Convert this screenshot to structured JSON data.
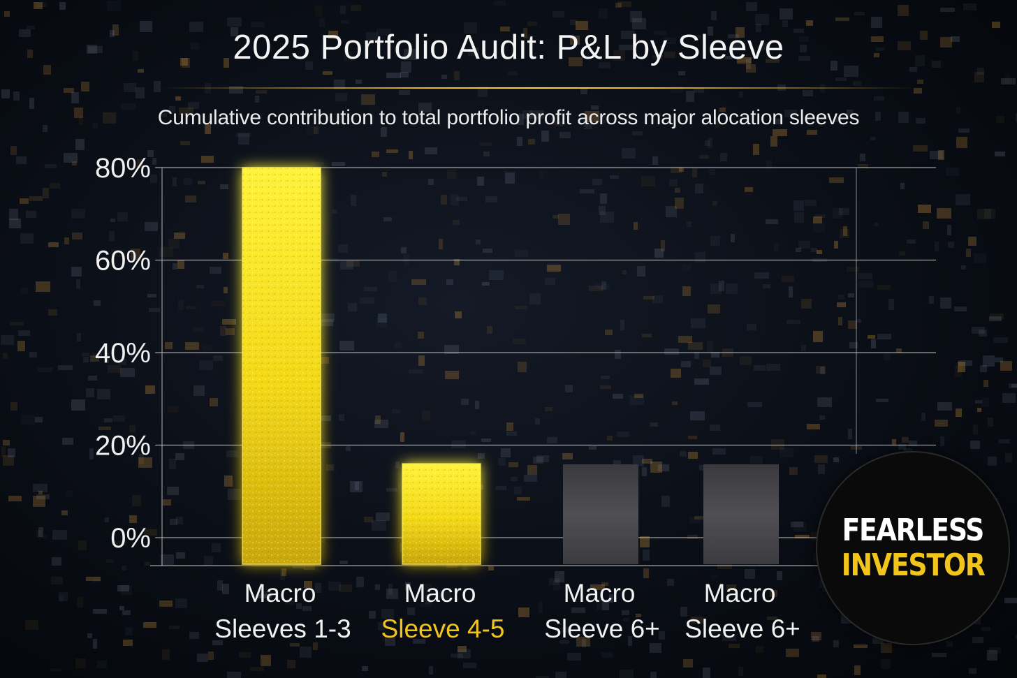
{
  "title": "2025 Portfolio Audit: P&L by Sleeve",
  "subtitle": "Cumulative contribution to total portfolio profit across major alocation sleeves",
  "logo": {
    "line1": "FEARLESS",
    "line2": "INVESTOR"
  },
  "colors": {
    "gold": "#f7e015",
    "gold_label": "#f2c51b",
    "grey_bar": "#4a4a4e",
    "grid": "#c8c8c8"
  },
  "chart_data": {
    "type": "bar",
    "title": "2025 Portfolio Audit: P&L by Sleeve",
    "subtitle": "Cumulative contribution to total portfolio profit across major alocation sleeves",
    "categories": [
      {
        "line1": "Macro",
        "line2": "Sleeves 1-3",
        "highlight": false
      },
      {
        "line1": "Macro",
        "line2": "Sleeve 4-5",
        "highlight": true
      },
      {
        "line1": "Macro",
        "line2": "Sleeve 6+",
        "highlight": false
      },
      {
        "line1": "Macro",
        "line2": "Sleeve 6+",
        "highlight": false
      }
    ],
    "values": [
      80,
      16,
      8,
      8
    ],
    "bar_colors": [
      "gold",
      "gold",
      "grey",
      "grey"
    ],
    "yticks": [
      "80%",
      "60%",
      "40%",
      "20%",
      "0%"
    ],
    "ytick_values": [
      80,
      60,
      40,
      20,
      0
    ],
    "ylim": [
      -5,
      80
    ],
    "xlabel": "",
    "ylabel": "",
    "grid": true,
    "legend": "none"
  }
}
